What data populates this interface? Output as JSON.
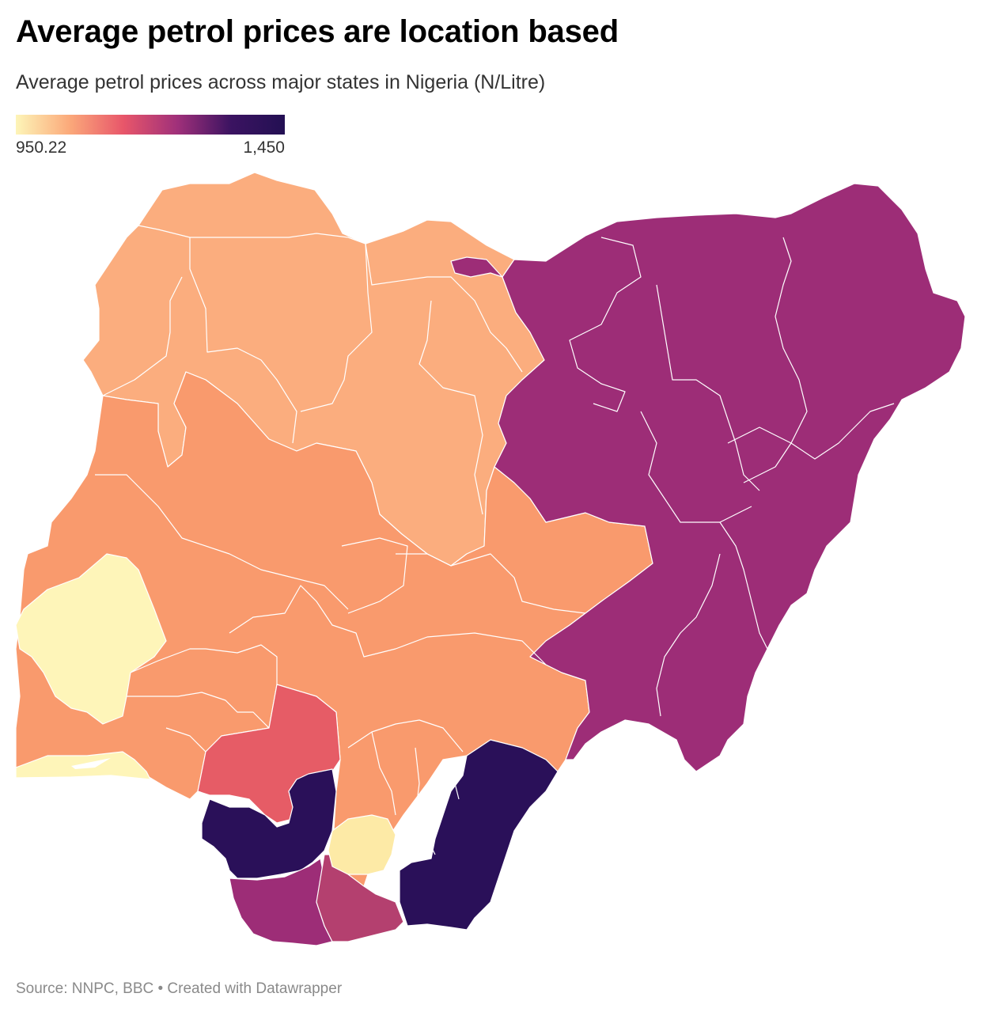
{
  "header": {
    "title": "Average petrol prices are location based",
    "subtitle": "Average petrol prices across major states in Nigeria (N/Litre)"
  },
  "legend": {
    "min_label": "950.22",
    "max_label": "1,450",
    "min_value": 950.22,
    "max_value": 1450,
    "gradient_colors": [
      "#fdf5b8",
      "#fba97a",
      "#e8566a",
      "#a0307a",
      "#3b1361",
      "#231053"
    ]
  },
  "colors": {
    "border": "#ffffff",
    "level_lowest": "#fef5b9",
    "level_low": "#fdeaa6",
    "level_north_west": "#fbad7e",
    "level_middle_belt": "#f99a6d",
    "level_mid": "#e65c66",
    "level_high_south": "#b4406f",
    "level_north_east": "#9d2d77",
    "level_highest": "#2a1059"
  },
  "footer": {
    "source": "Source: NNPC, BBC • Created with Datawrapper"
  }
}
